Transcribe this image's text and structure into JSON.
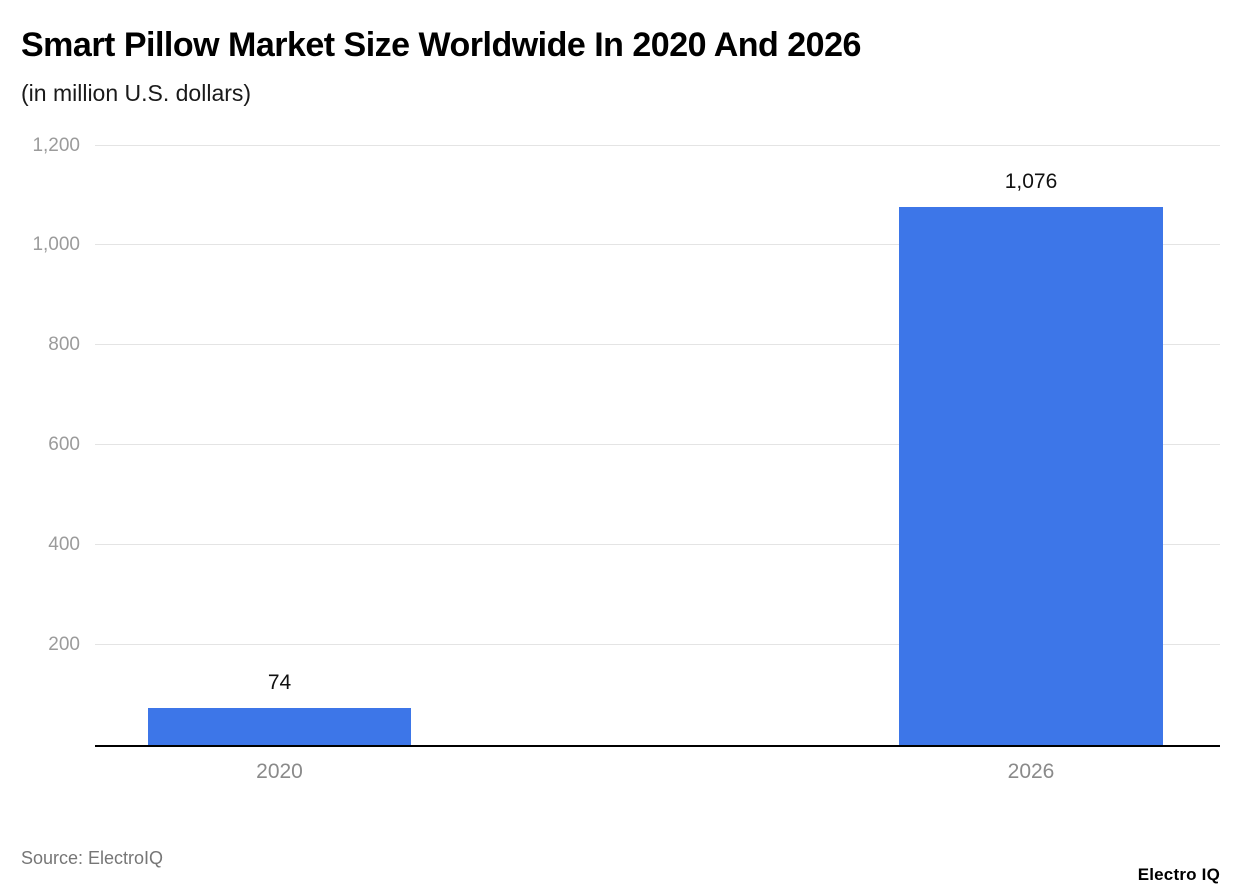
{
  "header": {
    "title": "Smart Pillow Market Size Worldwide In 2020 And 2026",
    "subtitle": "(in million U.S. dollars)"
  },
  "footer": {
    "source": "Source: ElectroIQ",
    "brand": "Electro IQ"
  },
  "colors": {
    "bar": "#3D76E8",
    "grid": "#E4E4E4",
    "axis": "#000000",
    "tick_text": "#9B9B9B"
  },
  "chart_data": {
    "type": "bar",
    "title": "Smart Pillow Market Size Worldwide In 2020 And 2026",
    "subtitle": "(in million U.S. dollars)",
    "categories": [
      "2020",
      "2026"
    ],
    "values": [
      74,
      1076
    ],
    "value_labels": [
      "74",
      "1,076"
    ],
    "xlabel": "",
    "ylabel": "",
    "ylim": [
      0,
      1200
    ],
    "yticks": [
      200,
      400,
      600,
      800,
      1000,
      1200
    ],
    "ytick_labels": [
      "200",
      "400",
      "600",
      "800",
      "1,000",
      "1,200"
    ],
    "grid": true,
    "legend": false,
    "bar_color": "#3D76E8",
    "source": "Source: ElectroIQ"
  }
}
